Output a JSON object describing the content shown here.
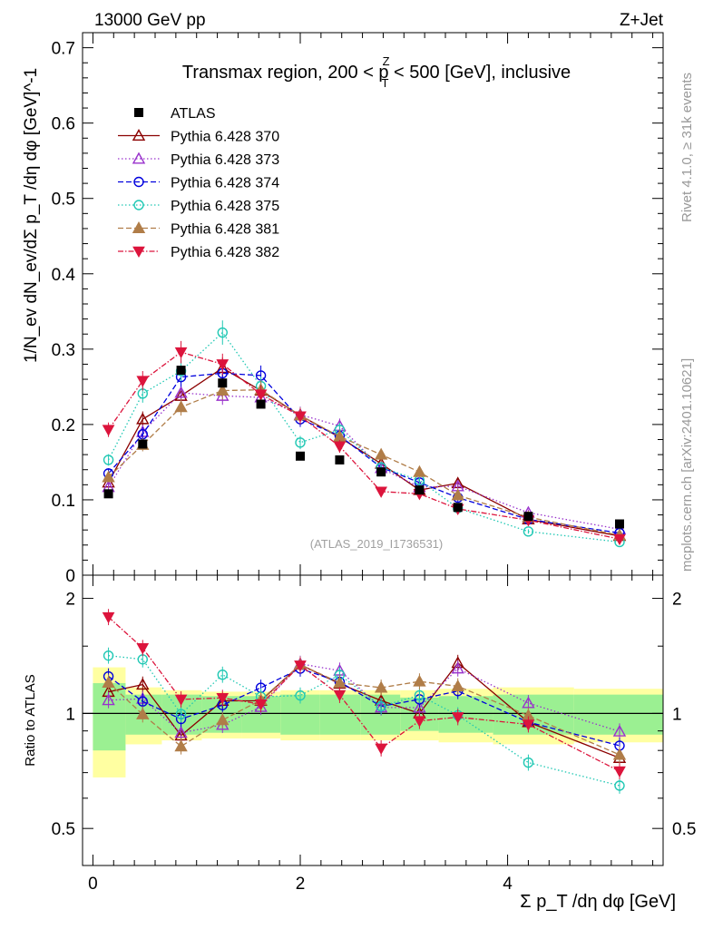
{
  "header": {
    "left": "13000 GeV pp",
    "right": "Z+Jet"
  },
  "plot_title": "Transmax region, 200 < p",
  "plot_title_sup": "Z",
  "plot_title_sub": "T",
  "plot_title_tail": " < 500 [GeV], inclusive",
  "side_label_1": "Rivet 4.1.0, ≥ 31k events",
  "side_label_2": "mcplots.cern.ch [arXiv:2401.10621]",
  "watermark": "(ATLAS_2019_I1736531)",
  "ylabel_main": "1/N_ev dN_ev/dΣ p_T /dη dφ [GeV]^-1",
  "ylabel_ratio": "Ratio to ATLAS",
  "xlabel": "Σ p_T /dη dφ [GeV]",
  "chart_data": {
    "type": "scatter",
    "title": "Transmax region, 200 < pT(Z) < 500 [GeV], inclusive",
    "xlim": [
      -0.1,
      5.5
    ],
    "ylim": [
      0,
      0.72
    ],
    "ratio_ylim": [
      0.4,
      2.3
    ],
    "ratio_scale": "log",
    "x_ticks": [
      "0",
      "2",
      "4"
    ],
    "y_ticks": [
      "0",
      "0.1",
      "0.2",
      "0.3",
      "0.4",
      "0.5",
      "0.6",
      "0.7"
    ],
    "ratio_y_ticks": [
      "0.5",
      "1",
      "2"
    ],
    "x": [
      0.15,
      0.48,
      0.85,
      1.25,
      1.62,
      2.0,
      2.38,
      2.78,
      3.15,
      3.52,
      4.2,
      5.08
    ],
    "data": {
      "name": "ATLAS",
      "values": [
        0.108,
        0.174,
        0.272,
        0.255,
        0.227,
        0.158,
        0.153,
        0.137,
        0.113,
        0.09,
        0.078,
        0.068
      ],
      "band_inner": [
        0.2,
        0.12,
        0.12,
        0.11,
        0.11,
        0.12,
        0.12,
        0.12,
        0.1,
        0.11,
        0.12,
        0.12
      ],
      "band_outer": [
        0.32,
        0.17,
        0.15,
        0.14,
        0.14,
        0.15,
        0.15,
        0.15,
        0.15,
        0.16,
        0.17,
        0.16
      ]
    },
    "series": [
      {
        "name": "Pythia 6.428 370",
        "color": "#8b0000",
        "marker": "triangle-open",
        "dash": "",
        "values": [
          0.123,
          0.207,
          0.238,
          0.275,
          0.245,
          0.212,
          0.183,
          0.148,
          0.113,
          0.122,
          0.074,
          0.052
        ]
      },
      {
        "name": "Pythia 6.428 373",
        "color": "#9932cc",
        "marker": "triangle-open",
        "dash": "1.5,2.5",
        "values": [
          0.117,
          0.19,
          0.242,
          0.238,
          0.236,
          0.213,
          0.198,
          0.142,
          0.117,
          0.118,
          0.083,
          0.061
        ]
      },
      {
        "name": "Pythia 6.428 374",
        "color": "#0000dd",
        "marker": "circle-open",
        "dash": "6,3",
        "values": [
          0.135,
          0.187,
          0.263,
          0.268,
          0.265,
          0.207,
          0.185,
          0.143,
          0.123,
          0.103,
          0.074,
          0.056
        ]
      },
      {
        "name": "Pythia 6.428 375",
        "color": "#20c8b4",
        "marker": "circle-open",
        "dash": "1.5,2.5",
        "values": [
          0.153,
          0.241,
          0.271,
          0.322,
          0.251,
          0.176,
          0.193,
          0.143,
          0.126,
          0.089,
          0.058,
          0.044
        ]
      },
      {
        "name": "Pythia 6.428 381",
        "color": "#b07d48",
        "marker": "triangle-filled",
        "dash": "6,3",
        "values": [
          0.13,
          0.173,
          0.223,
          0.245,
          0.246,
          0.212,
          0.184,
          0.16,
          0.137,
          0.106,
          0.077,
          0.053
        ]
      },
      {
        "name": "Pythia 6.428 382",
        "color": "#dc143c",
        "marker": "triangledown-filled",
        "dash": "6,2,1.5,2",
        "values": [
          0.193,
          0.258,
          0.296,
          0.28,
          0.24,
          0.211,
          0.171,
          0.111,
          0.108,
          0.088,
          0.073,
          0.048
        ]
      }
    ]
  }
}
